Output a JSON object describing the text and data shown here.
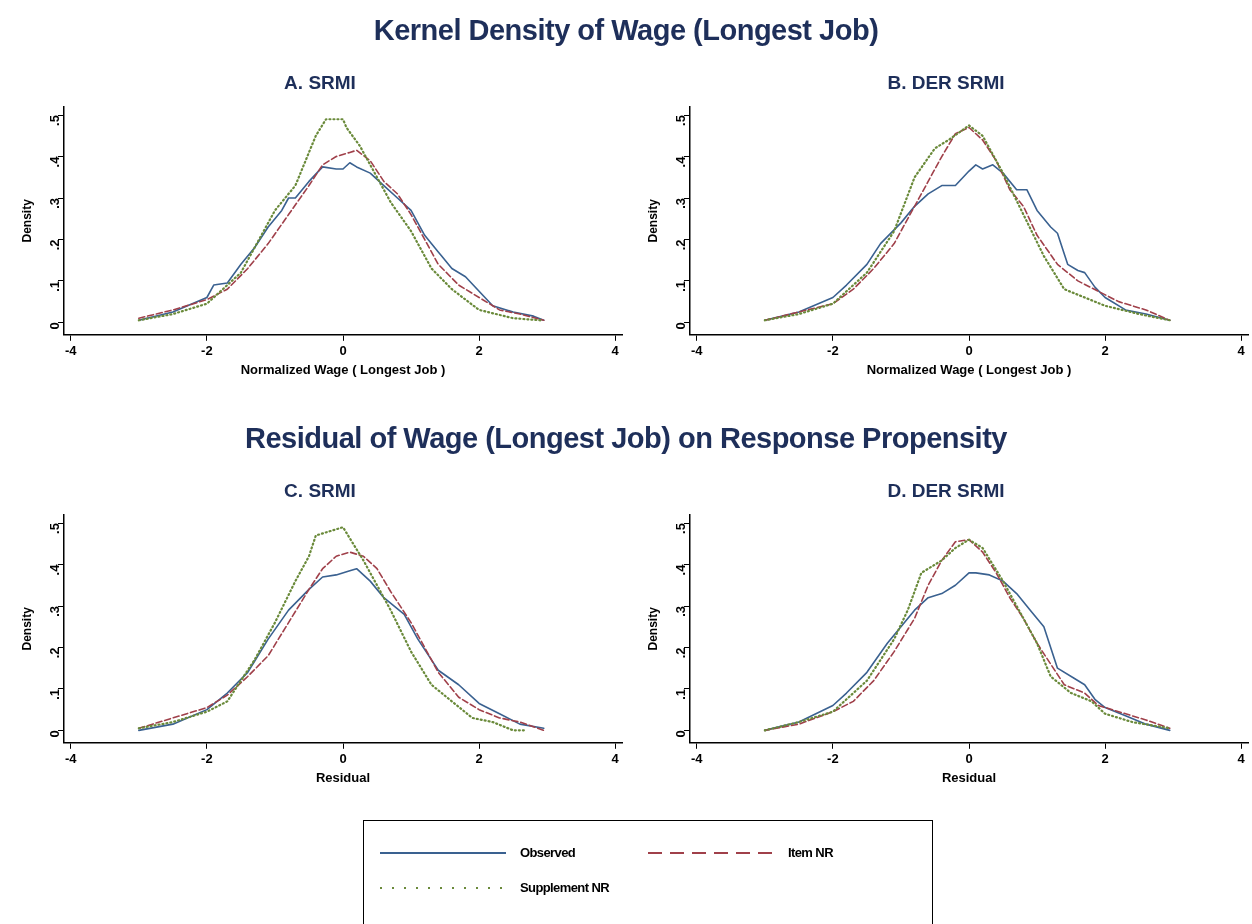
{
  "chart_data": [
    {
      "type": "line",
      "annotations": [
        "Kernel Density of Wage (Longest Job)"
      ],
      "title": "A. SRMI",
      "xlabel": "Normalized Wage ( Longest Job )",
      "ylabel": "Density",
      "xlim": [
        -4.1,
        4.1
      ],
      "ylim": [
        -0.03,
        0.52
      ],
      "xticks": [
        -4,
        -2,
        0,
        2,
        4
      ],
      "yticks": [
        {
          "value": 0,
          "label": "0"
        },
        {
          "value": 0.1,
          "label": ".1"
        },
        {
          "value": 0.2,
          "label": ".2"
        },
        {
          "value": 0.3,
          "label": ".3"
        },
        {
          "value": 0.4,
          "label": ".4"
        },
        {
          "value": 0.5,
          "label": ".5"
        }
      ],
      "grid": false,
      "legend": false,
      "series": [
        {
          "color": "#3a6190",
          "line_style": "solid",
          "x": [
            -3,
            -2.5,
            -2,
            -1.9,
            -1.7,
            -1.5,
            -1.3,
            -1.1,
            -0.9,
            -0.8,
            -0.7,
            -0.5,
            -0.3,
            -0.1,
            0,
            0.1,
            0.2,
            0.4,
            0.6,
            0.8,
            1,
            1.2,
            1.4,
            1.6,
            1.8,
            2,
            2.2,
            2.5,
            2.8,
            2.95
          ],
          "values": [
            0.005,
            0.025,
            0.06,
            0.09,
            0.095,
            0.14,
            0.18,
            0.23,
            0.27,
            0.3,
            0.3,
            0.34,
            0.375,
            0.37,
            0.37,
            0.385,
            0.375,
            0.36,
            0.33,
            0.3,
            0.27,
            0.21,
            0.17,
            0.13,
            0.11,
            0.075,
            0.04,
            0.025,
            0.015,
            0.005
          ]
        },
        {
          "color": "#a0404a",
          "line_style": "dashed",
          "x": [
            -3,
            -2.5,
            -2,
            -1.7,
            -1.4,
            -1.1,
            -0.8,
            -0.5,
            -0.3,
            -0.1,
            0.1,
            0.2,
            0.4,
            0.6,
            0.8,
            1,
            1.2,
            1.4,
            1.7,
            2,
            2.3,
            2.6,
            2.95
          ],
          "values": [
            0.01,
            0.03,
            0.055,
            0.08,
            0.13,
            0.19,
            0.26,
            0.33,
            0.38,
            0.4,
            0.41,
            0.415,
            0.39,
            0.34,
            0.31,
            0.26,
            0.2,
            0.14,
            0.09,
            0.06,
            0.03,
            0.02,
            0.005
          ]
        },
        {
          "color": "#6a8a3a",
          "line_style": "dotted",
          "x": [
            -3,
            -2.5,
            -2,
            -1.5,
            -1,
            -0.7,
            -0.4,
            -0.25,
            0,
            0.05,
            0.25,
            0.7,
            1,
            1.3,
            1.6,
            2,
            2.5,
            2.9
          ],
          "values": [
            0.005,
            0.02,
            0.045,
            0.12,
            0.27,
            0.33,
            0.45,
            0.49,
            0.49,
            0.47,
            0.425,
            0.29,
            0.22,
            0.13,
            0.08,
            0.03,
            0.01,
            0.005
          ]
        }
      ]
    },
    {
      "type": "line",
      "title": "B. DER SRMI",
      "xlabel": "Normalized Wage ( Longest Job )",
      "ylabel": "Density",
      "xlim": [
        -4.1,
        4.1
      ],
      "ylim": [
        -0.03,
        0.52
      ],
      "xticks": [
        -4,
        -2,
        0,
        2,
        4
      ],
      "yticks": [
        {
          "value": 0,
          "label": "0"
        },
        {
          "value": 0.1,
          "label": ".1"
        },
        {
          "value": 0.2,
          "label": ".2"
        },
        {
          "value": 0.3,
          "label": ".3"
        },
        {
          "value": 0.4,
          "label": ".4"
        },
        {
          "value": 0.5,
          "label": ".5"
        }
      ],
      "grid": false,
      "legend": false,
      "series": [
        {
          "color": "#3a6190",
          "line_style": "solid",
          "x": [
            -3,
            -2.5,
            -2,
            -1.8,
            -1.5,
            -1.3,
            -1,
            -0.8,
            -0.6,
            -0.4,
            -0.2,
            0,
            0.1,
            0.2,
            0.35,
            0.5,
            0.7,
            0.85,
            1,
            1.2,
            1.3,
            1.45,
            1.6,
            1.7,
            1.85,
            2,
            2.3,
            2.6,
            2.95
          ],
          "values": [
            0.005,
            0.025,
            0.06,
            0.09,
            0.14,
            0.19,
            0.24,
            0.28,
            0.31,
            0.33,
            0.33,
            0.365,
            0.38,
            0.37,
            0.38,
            0.36,
            0.32,
            0.32,
            0.27,
            0.23,
            0.215,
            0.14,
            0.125,
            0.12,
            0.085,
            0.06,
            0.03,
            0.02,
            0.005
          ]
        },
        {
          "color": "#a0404a",
          "line_style": "dashed",
          "x": [
            -3,
            -2.5,
            -2,
            -1.7,
            -1.4,
            -1.1,
            -0.8,
            -0.6,
            -0.4,
            -0.2,
            0,
            0.2,
            0.4,
            0.6,
            0.8,
            1,
            1.3,
            1.6,
            1.9,
            2.2,
            2.6,
            2.95
          ],
          "values": [
            0.005,
            0.025,
            0.045,
            0.08,
            0.13,
            0.19,
            0.28,
            0.34,
            0.4,
            0.455,
            0.47,
            0.44,
            0.39,
            0.32,
            0.28,
            0.21,
            0.14,
            0.1,
            0.075,
            0.05,
            0.03,
            0.005
          ]
        },
        {
          "color": "#6a8a3a",
          "line_style": "dotted",
          "x": [
            -3,
            -2.5,
            -2,
            -1.5,
            -1.1,
            -0.8,
            -0.5,
            -0.3,
            0,
            0.2,
            0.5,
            0.8,
            1.1,
            1.4,
            1.7,
            2,
            2.5,
            2.95
          ],
          "values": [
            0.005,
            0.02,
            0.045,
            0.12,
            0.22,
            0.35,
            0.42,
            0.44,
            0.475,
            0.45,
            0.36,
            0.26,
            0.16,
            0.08,
            0.06,
            0.04,
            0.02,
            0.005
          ]
        }
      ]
    },
    {
      "type": "line",
      "annotations": [
        "Residual of Wage (Longest Job) on Response Propensity"
      ],
      "title": "C. SRMI",
      "xlabel": "Residual",
      "ylabel": "Density",
      "xlim": [
        -4.1,
        4.1
      ],
      "ylim": [
        -0.03,
        0.52
      ],
      "xticks": [
        -4,
        -2,
        0,
        2,
        4
      ],
      "yticks": [
        {
          "value": 0,
          "label": "0"
        },
        {
          "value": 0.1,
          "label": ".1"
        },
        {
          "value": 0.2,
          "label": ".2"
        },
        {
          "value": 0.3,
          "label": ".3"
        },
        {
          "value": 0.4,
          "label": ".4"
        },
        {
          "value": 0.5,
          "label": ".5"
        }
      ],
      "grid": false,
      "legend": false,
      "series": [
        {
          "color": "#3a6190",
          "line_style": "solid",
          "x": [
            -3,
            -2.5,
            -2,
            -1.7,
            -1.4,
            -1.1,
            -0.8,
            -0.5,
            -0.3,
            -0.1,
            0.1,
            0.2,
            0.4,
            0.6,
            0.9,
            1.1,
            1.3,
            1.4,
            1.7,
            2,
            2.3,
            2.6,
            2.95
          ],
          "values": [
            0,
            0.015,
            0.05,
            0.09,
            0.14,
            0.22,
            0.29,
            0.34,
            0.37,
            0.375,
            0.385,
            0.39,
            0.36,
            0.32,
            0.28,
            0.22,
            0.17,
            0.145,
            0.11,
            0.065,
            0.04,
            0.015,
            0.005
          ]
        },
        {
          "color": "#a0404a",
          "line_style": "dashed",
          "x": [
            -3,
            -2.5,
            -2,
            -1.7,
            -1.4,
            -1.1,
            -0.8,
            -0.5,
            -0.3,
            -0.1,
            0.1,
            0.3,
            0.5,
            0.7,
            1,
            1.2,
            1.4,
            1.7,
            2,
            2.3,
            2.6,
            2.95
          ],
          "values": [
            0.005,
            0.03,
            0.055,
            0.085,
            0.13,
            0.18,
            0.26,
            0.34,
            0.39,
            0.42,
            0.43,
            0.42,
            0.39,
            0.335,
            0.26,
            0.2,
            0.14,
            0.08,
            0.05,
            0.03,
            0.02,
            0
          ]
        },
        {
          "color": "#6a8a3a",
          "line_style": "dotted",
          "x": [
            -3,
            -2.5,
            -2,
            -1.7,
            -1.3,
            -1,
            -0.7,
            -0.5,
            -0.4,
            0,
            0.3,
            0.7,
            1,
            1.3,
            1.6,
            1.9,
            2.2,
            2.5,
            2.7
          ],
          "values": [
            0.005,
            0.02,
            0.045,
            0.07,
            0.17,
            0.26,
            0.36,
            0.42,
            0.47,
            0.49,
            0.41,
            0.29,
            0.19,
            0.11,
            0.07,
            0.03,
            0.02,
            0,
            0
          ]
        }
      ]
    },
    {
      "type": "line",
      "title": "D. DER SRMI",
      "xlabel": "Residual",
      "ylabel": "Density",
      "xlim": [
        -4.1,
        4.1
      ],
      "ylim": [
        -0.03,
        0.52
      ],
      "xticks": [
        -4,
        -2,
        0,
        2,
        4
      ],
      "yticks": [
        {
          "value": 0,
          "label": "0"
        },
        {
          "value": 0.1,
          "label": ".1"
        },
        {
          "value": 0.2,
          "label": ".2"
        },
        {
          "value": 0.3,
          "label": ".3"
        },
        {
          "value": 0.4,
          "label": ".4"
        },
        {
          "value": 0.5,
          "label": ".5"
        }
      ],
      "grid": false,
      "legend": "bottom",
      "series": [
        {
          "name": "Observed",
          "color": "#3a6190",
          "line_style": "solid",
          "x": [
            -3,
            -2.5,
            -2,
            -1.8,
            -1.5,
            -1.2,
            -1,
            -0.8,
            -0.6,
            -0.4,
            -0.2,
            0,
            0.1,
            0.3,
            0.5,
            0.7,
            0.9,
            1.1,
            1.3,
            1.55,
            1.7,
            1.85,
            2,
            2.3,
            2.6,
            2.95
          ],
          "values": [
            0,
            0.02,
            0.06,
            0.09,
            0.14,
            0.21,
            0.25,
            0.29,
            0.32,
            0.33,
            0.35,
            0.38,
            0.38,
            0.375,
            0.36,
            0.33,
            0.29,
            0.25,
            0.15,
            0.125,
            0.11,
            0.075,
            0.055,
            0.035,
            0.015,
            0
          ]
        },
        {
          "name": "Item NR",
          "color": "#a0404a",
          "line_style": "dashed",
          "x": [
            -3,
            -2.5,
            -2,
            -1.7,
            -1.4,
            -1.1,
            -0.8,
            -0.6,
            -0.4,
            -0.2,
            0,
            0.2,
            0.4,
            0.6,
            0.8,
            1,
            1.2,
            1.4,
            1.7,
            1.9,
            2.2,
            2.6,
            2.95
          ],
          "values": [
            0,
            0.015,
            0.045,
            0.07,
            0.12,
            0.19,
            0.27,
            0.35,
            0.41,
            0.455,
            0.46,
            0.43,
            0.38,
            0.32,
            0.27,
            0.21,
            0.16,
            0.11,
            0.09,
            0.06,
            0.045,
            0.025,
            0.005
          ]
        },
        {
          "name": "Supplement NR",
          "color": "#6a8a3a",
          "line_style": "dotted",
          "x": [
            -3,
            -2.5,
            -2,
            -1.5,
            -1.1,
            -0.9,
            -0.7,
            -0.4,
            -0.2,
            0,
            0.2,
            0.5,
            0.8,
            1,
            1.2,
            1.5,
            1.8,
            2,
            2.4,
            2.95
          ],
          "values": [
            0,
            0.02,
            0.045,
            0.12,
            0.22,
            0.29,
            0.38,
            0.41,
            0.44,
            0.46,
            0.44,
            0.36,
            0.27,
            0.21,
            0.13,
            0.09,
            0.07,
            0.04,
            0.02,
            0.005
          ]
        }
      ]
    }
  ]
}
